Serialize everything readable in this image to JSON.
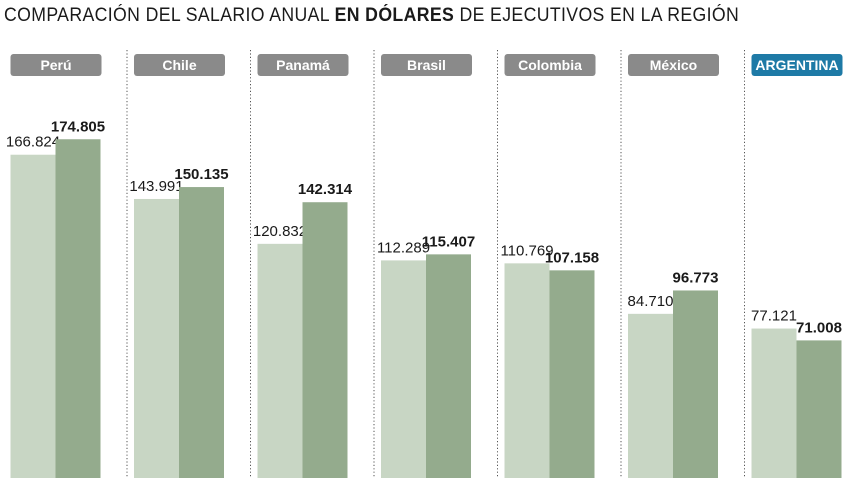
{
  "title": {
    "pre": "COMPARACIÓN DEL SALARIO ANUAL ",
    "bold": "EN DÓLARES",
    "post": " DE EJECUTIVOS EN LA REGIÓN"
  },
  "colors": {
    "series_light": "#c8d6c4",
    "series_dark": "#94ab8d",
    "label_bg": "#8a8a8a",
    "highlight_bg": "#1e7aa6",
    "divider": "#555555",
    "text": "#1a1a1a"
  },
  "chart_data": {
    "type": "bar",
    "categories": [
      "Perú",
      "Chile",
      "Panamá",
      "Brasil",
      "Colombia",
      "México",
      "ARGENTINA"
    ],
    "highlight_category": "ARGENTINA",
    "series": [
      {
        "values": [
          166824,
          143991,
          120832,
          112289,
          110769,
          84710,
          77121
        ],
        "labels": [
          "166.824",
          "143.991",
          "120.832",
          "112.289",
          "110.769",
          "84.710",
          "77.121"
        ]
      },
      {
        "values": [
          174805,
          150135,
          142314,
          115407,
          107158,
          96773,
          71008
        ],
        "labels": [
          "174.805",
          "150.135",
          "142.314",
          "115.407",
          "107.158",
          "96.773",
          "71.008"
        ]
      }
    ],
    "ylim": [
      0,
      177000
    ],
    "grid": false
  }
}
